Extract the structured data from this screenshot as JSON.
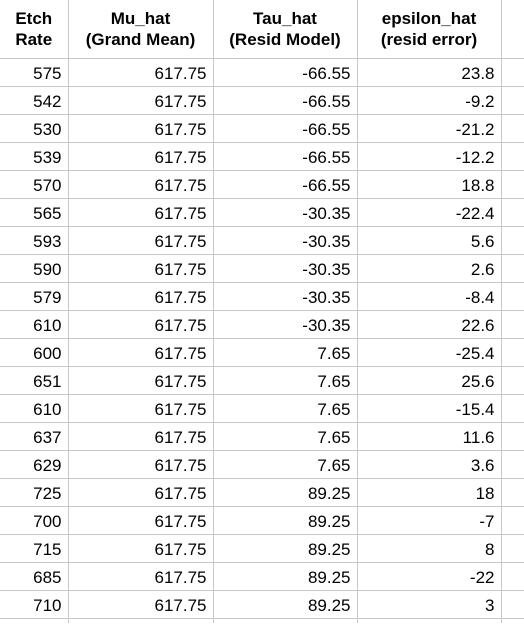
{
  "table": {
    "headers": [
      {
        "line1": "Etch",
        "line2": "Rate"
      },
      {
        "line1": "Mu_hat",
        "line2": "(Grand Mean)"
      },
      {
        "line1": "Tau_hat",
        "line2": "(Resid Model)"
      },
      {
        "line1": "epsilon_hat",
        "line2": "(resid error)"
      }
    ],
    "rows": [
      [
        "575",
        "617.75",
        "-66.55",
        "23.8"
      ],
      [
        "542",
        "617.75",
        "-66.55",
        "-9.2"
      ],
      [
        "530",
        "617.75",
        "-66.55",
        "-21.2"
      ],
      [
        "539",
        "617.75",
        "-66.55",
        "-12.2"
      ],
      [
        "570",
        "617.75",
        "-66.55",
        "18.8"
      ],
      [
        "565",
        "617.75",
        "-30.35",
        "-22.4"
      ],
      [
        "593",
        "617.75",
        "-30.35",
        "5.6"
      ],
      [
        "590",
        "617.75",
        "-30.35",
        "2.6"
      ],
      [
        "579",
        "617.75",
        "-30.35",
        "-8.4"
      ],
      [
        "610",
        "617.75",
        "-30.35",
        "22.6"
      ],
      [
        "600",
        "617.75",
        "7.65",
        "-25.4"
      ],
      [
        "651",
        "617.75",
        "7.65",
        "25.6"
      ],
      [
        "610",
        "617.75",
        "7.65",
        "-15.4"
      ],
      [
        "637",
        "617.75",
        "7.65",
        "11.6"
      ],
      [
        "629",
        "617.75",
        "7.65",
        "3.6"
      ],
      [
        "725",
        "617.75",
        "89.25",
        "18"
      ],
      [
        "700",
        "617.75",
        "89.25",
        "-7"
      ],
      [
        "715",
        "617.75",
        "89.25",
        "8"
      ],
      [
        "685",
        "617.75",
        "89.25",
        "-22"
      ],
      [
        "710",
        "617.75",
        "89.25",
        "3"
      ]
    ]
  }
}
